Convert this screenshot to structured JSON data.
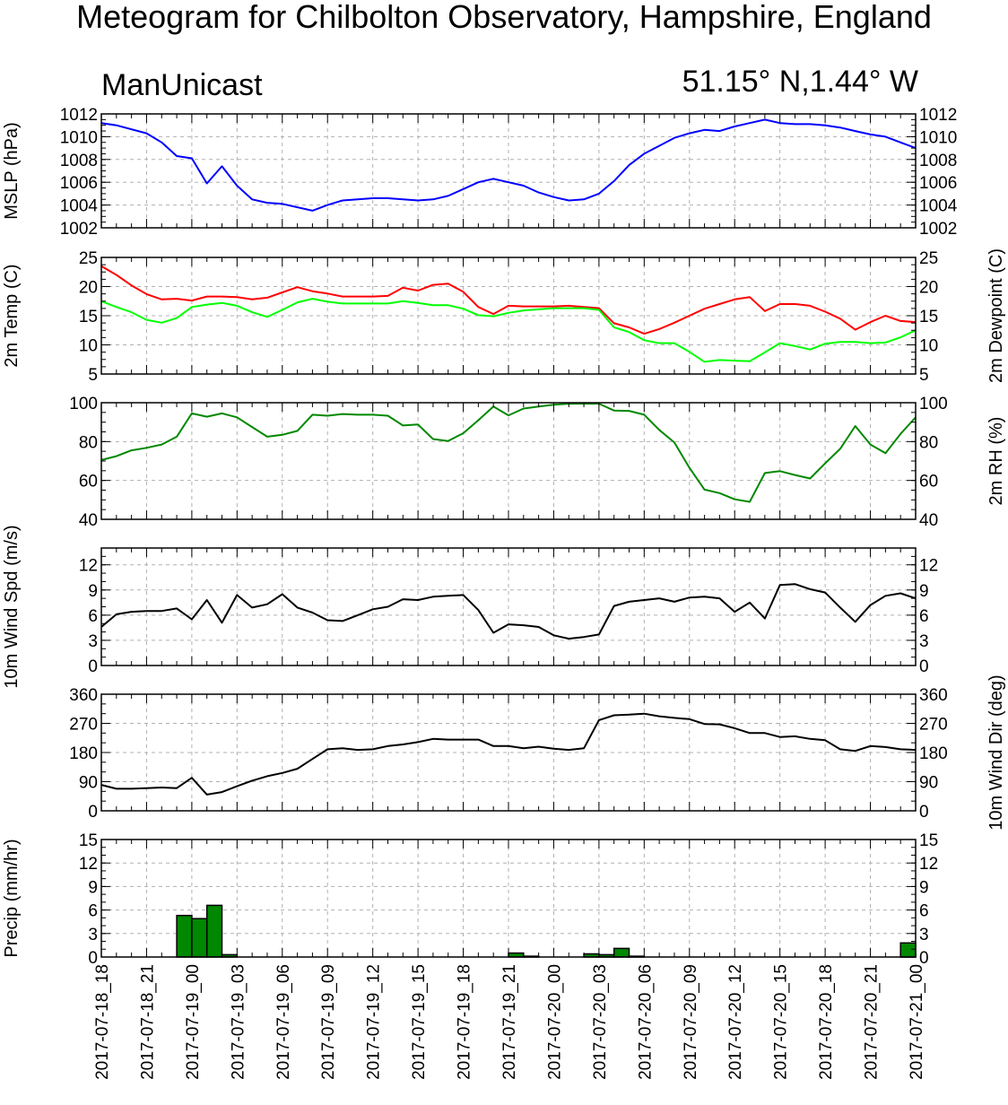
{
  "header": {
    "title": "Meteogram for Chilbolton Observatory, Hampshire, England",
    "model": "ManUnicast",
    "coords": "51.15° N,1.44° W"
  },
  "colors": {
    "mslp": "#0000ff",
    "temp": "#ff0000",
    "dewpoint": "#00ff00",
    "rh": "#008800",
    "wind": "#000000",
    "precip": "#008800"
  },
  "time_labels": [
    "2017-07-18_18",
    "2017-07-18_21",
    "2017-07-19_00",
    "2017-07-19_03",
    "2017-07-19_06",
    "2017-07-19_09",
    "2017-07-19_12",
    "2017-07-19_15",
    "2017-07-19_18",
    "2017-07-19_21",
    "2017-07-20_00",
    "2017-07-20_03",
    "2017-07-20_06",
    "2017-07-20_09",
    "2017-07-20_12",
    "2017-07-20_15",
    "2017-07-20_18",
    "2017-07-20_21",
    "2017-07-21_00"
  ],
  "chart_data": [
    {
      "type": "line",
      "id": "mslp",
      "ylabel_left": "MSLP (hPa)",
      "ylabel_right": "",
      "ylim": [
        1002,
        1012
      ],
      "yticks": [
        1002,
        1004,
        1006,
        1008,
        1010,
        1012
      ],
      "grid": true,
      "right_tick_labels": true,
      "xlim": [
        0,
        54
      ],
      "x_unit": "hours since 2017-07-18_18",
      "series": [
        {
          "color": "#0000ff",
          "x": [
            0,
            1,
            3,
            4,
            5,
            6,
            7,
            8,
            9,
            10,
            11,
            12,
            14,
            15,
            16,
            17,
            18,
            19,
            20,
            21,
            22,
            23,
            24,
            25,
            26,
            27,
            28,
            29,
            30,
            31,
            32,
            33,
            34,
            35,
            36,
            37,
            38,
            39,
            40,
            41,
            42,
            43,
            44,
            45,
            46,
            47,
            48,
            49,
            50,
            51,
            52,
            53,
            54
          ],
          "values": [
            1011.2,
            1011.0,
            1010.3,
            1009.5,
            1008.3,
            1008.1,
            1005.9,
            1007.4,
            1005.7,
            1004.5,
            1004.2,
            1004.1,
            1003.5,
            1004.0,
            1004.4,
            1004.5,
            1004.6,
            1004.6,
            1004.5,
            1004.4,
            1004.5,
            1004.8,
            1005.4,
            1006.0,
            1006.3,
            1006.0,
            1005.7,
            1005.1,
            1004.7,
            1004.4,
            1004.5,
            1005.0,
            1006.1,
            1007.5,
            1008.5,
            1009.2,
            1009.9,
            1010.3,
            1010.6,
            1010.5,
            1010.9,
            1011.2,
            1011.5,
            1011.2,
            1011.1,
            1011.1,
            1011.0,
            1010.8,
            1010.5,
            1010.2,
            1010.0,
            1009.5,
            1009.0
          ]
        }
      ]
    },
    {
      "type": "line",
      "id": "temp",
      "ylabel_left": "2m Temp (C)",
      "ylabel_right": "2m Dewpoint (C)",
      "ylim": [
        5,
        25
      ],
      "yticks": [
        5,
        10,
        15,
        20,
        25
      ],
      "grid": true,
      "right_tick_labels": true,
      "xlim": [
        0,
        54
      ],
      "series": [
        {
          "color": "#ff0000",
          "x": [
            0,
            1,
            2,
            3,
            4,
            5,
            6,
            7,
            8,
            9,
            10,
            11,
            12,
            13,
            14,
            15,
            16,
            17,
            18,
            19,
            20,
            21,
            22,
            23,
            24,
            25,
            26,
            27,
            28,
            29,
            30,
            31,
            32,
            33,
            34,
            35,
            36,
            37,
            38,
            39,
            40,
            41,
            42,
            43,
            44,
            45,
            46,
            47,
            48,
            49,
            50,
            51,
            52,
            53,
            54
          ],
          "values": [
            23.5,
            22.0,
            20.2,
            18.7,
            17.8,
            17.9,
            17.6,
            18.3,
            18.3,
            18.2,
            17.8,
            18.1,
            19.0,
            19.9,
            19.2,
            18.8,
            18.3,
            18.3,
            18.3,
            18.4,
            19.8,
            19.3,
            20.3,
            20.5,
            19.1,
            16.5,
            15.3,
            16.7,
            16.6,
            16.6,
            16.6,
            16.7,
            16.5,
            16.3,
            13.7,
            13.0,
            11.9,
            12.7,
            13.8,
            15.0,
            16.2,
            17.0,
            17.8,
            18.2,
            15.8,
            17.0,
            17.0,
            16.7,
            15.7,
            14.5,
            12.6,
            13.9,
            15.0,
            14.1,
            13.9
          ]
        },
        {
          "color": "#00ff00",
          "x": [
            0,
            1,
            2,
            3,
            4,
            5,
            6,
            7,
            8,
            9,
            10,
            11,
            12,
            13,
            14,
            15,
            16,
            17,
            18,
            19,
            20,
            21,
            22,
            23,
            24,
            25,
            26,
            27,
            28,
            29,
            30,
            31,
            32,
            33,
            34,
            35,
            36,
            37,
            38,
            39,
            40,
            41,
            42,
            43,
            44,
            45,
            46,
            47,
            48,
            49,
            50,
            51,
            52,
            53,
            54
          ],
          "values": [
            17.5,
            16.5,
            15.6,
            14.3,
            13.8,
            14.6,
            16.5,
            16.9,
            17.2,
            16.7,
            15.6,
            14.8,
            16.0,
            17.3,
            17.9,
            17.4,
            17.1,
            17.1,
            17.1,
            17.1,
            17.5,
            17.2,
            16.8,
            16.8,
            16.2,
            15.1,
            14.9,
            15.5,
            15.9,
            16.1,
            16.3,
            16.3,
            16.3,
            16.0,
            13.0,
            12.2,
            10.8,
            10.3,
            10.3,
            8.8,
            7.1,
            7.4,
            7.3,
            7.2,
            8.7,
            10.3,
            9.8,
            9.2,
            10.2,
            10.5,
            10.5,
            10.3,
            10.4,
            11.3,
            12.5
          ]
        }
      ]
    },
    {
      "type": "line",
      "id": "rh",
      "ylabel_left": "",
      "ylabel_right": "2m RH (%)",
      "ylim": [
        40,
        100
      ],
      "yticks": [
        40,
        60,
        80,
        100
      ],
      "grid": true,
      "right_tick_labels": true,
      "xlim": [
        0,
        54
      ],
      "series": [
        {
          "color": "#008800",
          "x": [
            0,
            1,
            2,
            3,
            4,
            5,
            6,
            7,
            8,
            9,
            10,
            11,
            12,
            13,
            14,
            15,
            16,
            17,
            18,
            19,
            20,
            21,
            22,
            23,
            24,
            25,
            26,
            27,
            28,
            29,
            30,
            31,
            32,
            33,
            34,
            35,
            36,
            37,
            38,
            39,
            40,
            41,
            42,
            43,
            44,
            45,
            46,
            47,
            48,
            49,
            50,
            51,
            52,
            53,
            54
          ],
          "values": [
            70.5,
            72.5,
            75.5,
            76.8,
            78.5,
            82.5,
            94.5,
            92.8,
            94.5,
            92.5,
            87.5,
            82.5,
            83.5,
            85.5,
            93.8,
            93.3,
            94.2,
            93.8,
            93.8,
            93.3,
            88.3,
            88.8,
            81.3,
            80.3,
            84.3,
            91.0,
            98.0,
            93.5,
            97.0,
            98.0,
            99.0,
            99.5,
            99.5,
            99.5,
            96.0,
            95.8,
            93.8,
            86.0,
            79.5,
            66.5,
            55.3,
            53.5,
            50.3,
            49.0,
            63.8,
            64.8,
            62.8,
            61.0,
            68.8,
            76.3,
            88.0,
            78.5,
            74.0,
            84.0,
            92.5
          ]
        }
      ]
    },
    {
      "type": "line",
      "id": "wspd",
      "ylabel_left": "10m Wind Spd (m/s)",
      "ylabel_right": "",
      "ylim": [
        0,
        14
      ],
      "yticks": [
        0,
        3,
        6,
        9,
        12
      ],
      "grid": true,
      "right_tick_labels": true,
      "xlim": [
        0,
        54
      ],
      "series": [
        {
          "color": "#000000",
          "x": [
            0,
            1,
            2,
            3,
            4,
            5,
            6,
            7,
            8,
            9,
            10,
            11,
            12,
            13,
            14,
            15,
            16,
            17,
            18,
            19,
            20,
            21,
            22,
            23,
            24,
            25,
            26,
            27,
            28,
            29,
            30,
            31,
            32,
            33,
            34,
            35,
            36,
            37,
            38,
            39,
            40,
            41,
            42,
            43,
            44,
            45,
            46,
            47,
            48,
            49,
            50,
            51,
            52,
            53,
            54
          ],
          "values": [
            4.6,
            6.1,
            6.4,
            6.5,
            6.5,
            6.8,
            5.5,
            7.8,
            5.1,
            8.4,
            6.9,
            7.3,
            8.5,
            6.9,
            6.3,
            5.4,
            5.3,
            6.0,
            6.7,
            7.0,
            7.9,
            7.8,
            8.2,
            8.3,
            8.4,
            6.6,
            3.9,
            4.9,
            4.8,
            4.6,
            3.6,
            3.2,
            3.4,
            3.7,
            7.1,
            7.6,
            7.8,
            8.0,
            7.6,
            8.1,
            8.2,
            8.0,
            6.4,
            7.5,
            5.6,
            9.6,
            9.7,
            9.1,
            8.7,
            6.9,
            5.2,
            7.2,
            8.3,
            8.6,
            8.0
          ]
        }
      ]
    },
    {
      "type": "line",
      "id": "wdir",
      "ylabel_left": "",
      "ylabel_right": "10m Wind Dir (deg)",
      "ylim": [
        0,
        360
      ],
      "yticks": [
        0,
        90,
        180,
        270,
        360
      ],
      "grid": true,
      "right_tick_labels": true,
      "xlim": [
        0,
        54
      ],
      "series": [
        {
          "color": "#000000",
          "x": [
            0,
            1,
            2,
            3,
            4,
            5,
            6,
            7,
            8,
            9,
            10,
            11,
            12,
            13,
            14,
            15,
            16,
            17,
            18,
            19,
            20,
            21,
            22,
            23,
            24,
            25,
            26,
            27,
            28,
            29,
            30,
            31,
            32,
            33,
            34,
            35,
            36,
            37,
            38,
            39,
            40,
            41,
            42,
            43,
            44,
            45,
            46,
            47,
            48,
            49,
            50,
            51,
            52,
            53,
            54
          ],
          "values": [
            80,
            68,
            68,
            70,
            72,
            70,
            102,
            50,
            58,
            76,
            93,
            107,
            117,
            130,
            160,
            190,
            193,
            188,
            190,
            200,
            205,
            212,
            222,
            220,
            220,
            220,
            200,
            200,
            193,
            198,
            192,
            188,
            193,
            280,
            295,
            297,
            300,
            292,
            287,
            283,
            268,
            267,
            255,
            240,
            240,
            228,
            230,
            222,
            218,
            190,
            185,
            200,
            197,
            190,
            188
          ]
        }
      ]
    },
    {
      "type": "bar",
      "id": "precip",
      "ylabel_left": "Precip (mm/hr)",
      "ylabel_right": "",
      "ylim": [
        0,
        15
      ],
      "yticks": [
        0,
        3,
        6,
        9,
        12,
        15
      ],
      "grid": true,
      "right_tick_labels": true,
      "xlim": [
        0,
        54
      ],
      "bar_color": "#008800",
      "x": [
        5,
        6,
        7,
        8,
        27,
        28,
        32,
        33,
        34,
        35,
        53
      ],
      "values": [
        5.3,
        4.9,
        6.6,
        0.3,
        0.5,
        0.1,
        0.4,
        0.3,
        1.1,
        0.1,
        0.4
      ],
      "x_end_bar": [
        54
      ],
      "values_end_bar": [
        1.8
      ]
    }
  ]
}
